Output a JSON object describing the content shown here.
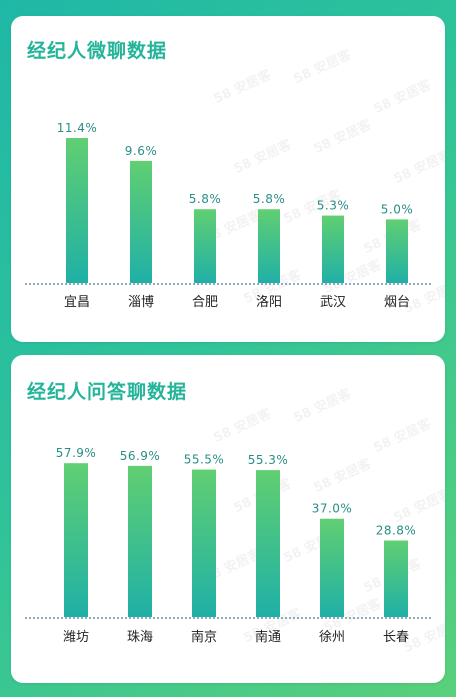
{
  "watermark": "58 安居客",
  "colors": {
    "title": "#24b49a",
    "bar_top": "#61cf72",
    "bar_bottom": "#1fb0a6",
    "value_text": "#2a8e86",
    "baseline": "#1e5b8a"
  },
  "chart_data": [
    {
      "type": "bar",
      "title": "经纪人微聊数据",
      "categories": [
        "宜昌",
        "淄博",
        "合肥",
        "洛阳",
        "武汉",
        "烟台"
      ],
      "values": [
        11.4,
        9.6,
        5.8,
        5.8,
        5.3,
        5.0
      ],
      "value_labels": [
        "11.4%",
        "9.6%",
        "5.8%",
        "5.8%",
        "5.3%",
        "5.0%"
      ],
      "ylim": [
        0,
        12.5
      ],
      "grid": false,
      "legend": "none"
    },
    {
      "type": "bar",
      "title": "经纪人问答聊数据",
      "categories": [
        "潍坊",
        "珠海",
        "南京",
        "南通",
        "徐州",
        "长春"
      ],
      "values": [
        57.9,
        56.9,
        55.5,
        55.3,
        37.0,
        28.8
      ],
      "value_labels": [
        "57.9%",
        "56.9%",
        "55.5%",
        "55.3%",
        "37.0%",
        "28.8%"
      ],
      "ylim": [
        0,
        64
      ],
      "grid": false,
      "legend": "none"
    }
  ]
}
